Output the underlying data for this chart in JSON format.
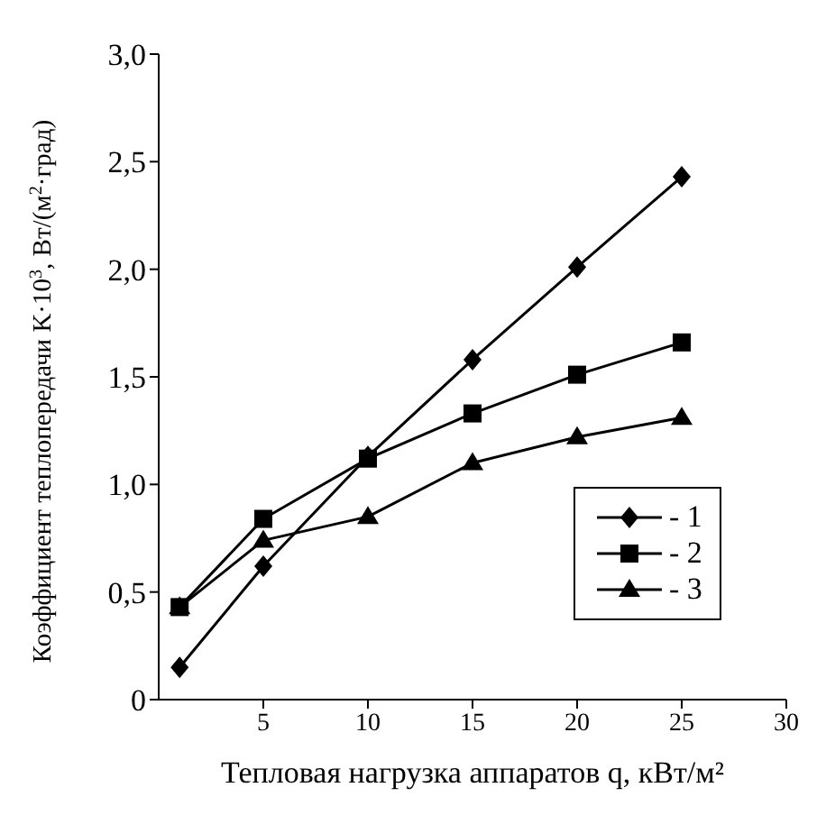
{
  "chart_data": {
    "type": "line",
    "xlabel": "Тепловая нагрузка аппаратов q, кВт/м²",
    "ylabel": "Коэффициент теплопередачи K·10$^{3}$, Вт/(м$^{2}$·град)",
    "x": [
      1,
      5,
      10,
      15,
      20,
      25
    ],
    "xlim": [
      0,
      30
    ],
    "xticks": [
      5,
      10,
      15,
      20,
      25,
      30
    ],
    "ylim": [
      0,
      3
    ],
    "yticks": [
      0,
      {
        "value": 0.5,
        "label": "0,5"
      },
      {
        "value": 1,
        "label": "1,0"
      },
      {
        "value": 1.5,
        "label": "1,5"
      },
      {
        "value": 2,
        "label": "2,0"
      },
      {
        "value": 2.5,
        "label": "2,5"
      },
      {
        "value": 3,
        "label": "3,0"
      }
    ],
    "legend": "bottom right",
    "line_style": "solid",
    "series": [
      {
        "name": "- 1",
        "color": "#000000",
        "marker": "diamond",
        "values": [
          0.15,
          0.62,
          1.13,
          1.58,
          2.01,
          2.43
        ]
      },
      {
        "name": "- 2",
        "color": "#000000",
        "marker": "square",
        "values": [
          0.43,
          0.84,
          1.12,
          1.33,
          1.51,
          1.66
        ]
      },
      {
        "name": "- 3",
        "color": "#000000",
        "marker": "triangle",
        "values": [
          0.43,
          0.74,
          0.85,
          1.1,
          1.22,
          1.31
        ]
      }
    ]
  }
}
